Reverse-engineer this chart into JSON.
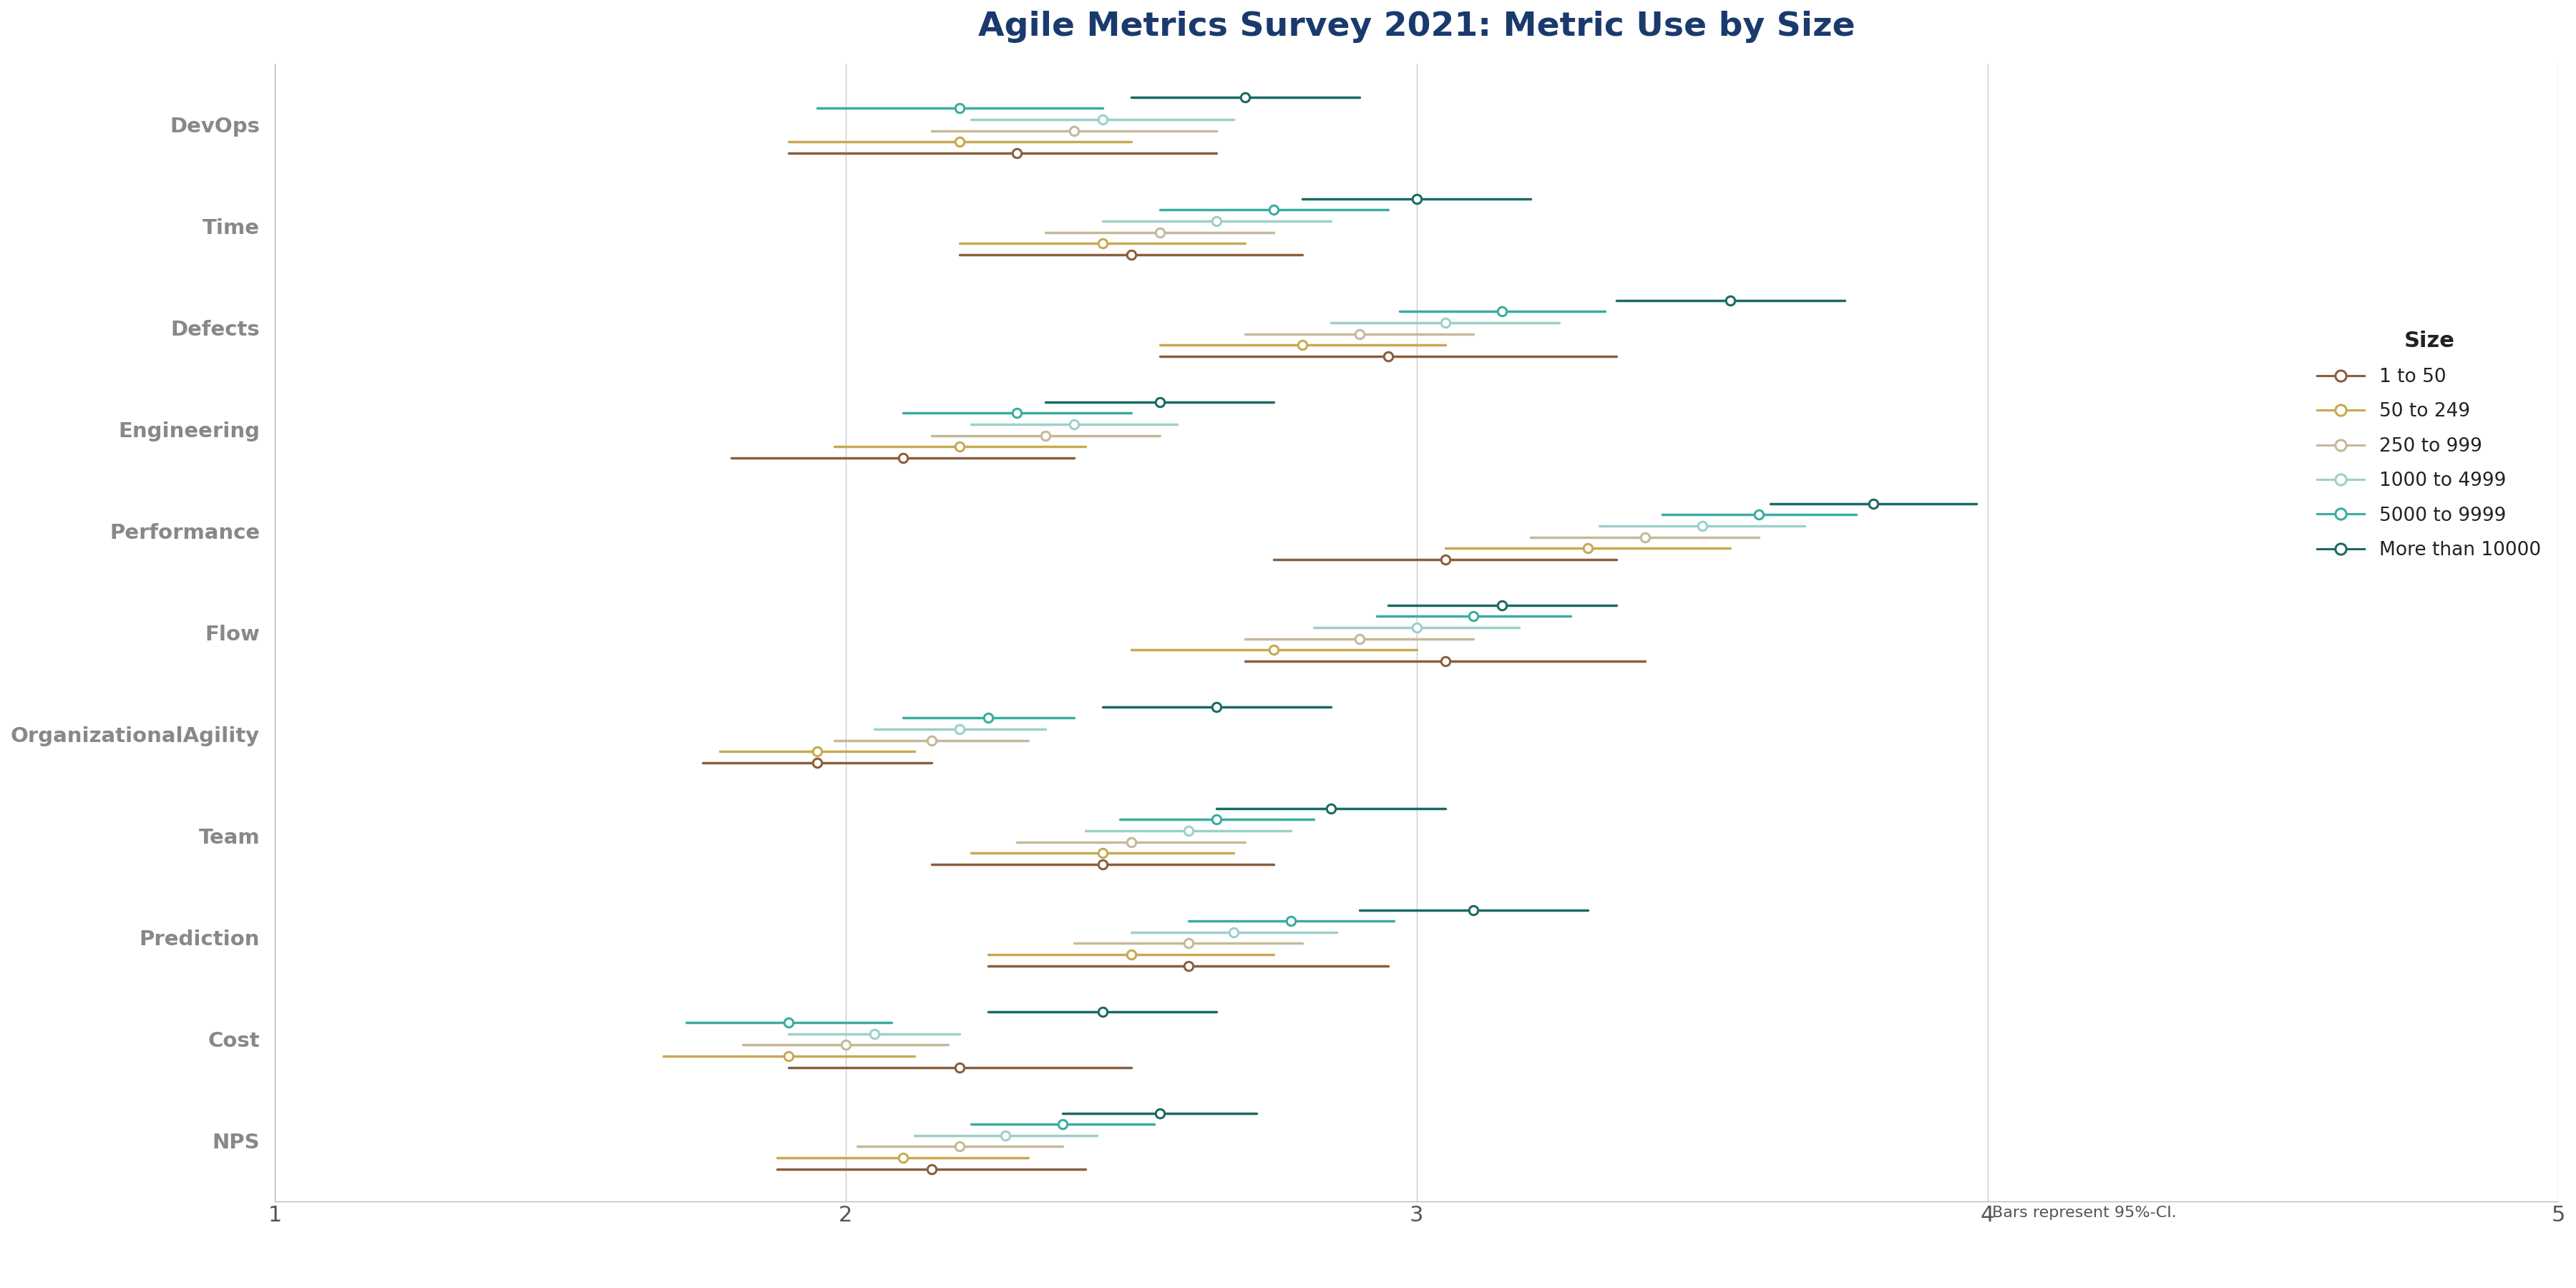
{
  "title": "Agile Metrics Survey 2021: Metric Use by Size",
  "categories": [
    "DevOps",
    "Time",
    "Defects",
    "Engineering",
    "Performance",
    "Flow",
    "OrganizationalAgility",
    "Team",
    "Prediction",
    "Cost",
    "NPS"
  ],
  "size_labels": [
    "1 to 50",
    "50 to 249",
    "250 to 999",
    "1000 to 4999",
    "5000 to 9999",
    "More than 10000"
  ],
  "colors": [
    "#8B5E3C",
    "#C8A951",
    "#C4B99A",
    "#9DCFCA",
    "#3AADA0",
    "#1A6B63"
  ],
  "xlim": [
    1,
    5
  ],
  "xticks": [
    1,
    2,
    3,
    4,
    5
  ],
  "note": "Bars represent 95%-CI.",
  "size_offsets": [
    "-0.28",
    "-0.17",
    "-0.06",
    "0.05",
    "0.16",
    "0.27"
  ],
  "data": {
    "DevOps": {
      "1 to 50": {
        "mean": 2.3,
        "lo": 1.9,
        "hi": 2.65
      },
      "50 to 249": {
        "mean": 2.2,
        "lo": 1.9,
        "hi": 2.5
      },
      "250 to 999": {
        "mean": 2.4,
        "lo": 2.15,
        "hi": 2.65
      },
      "1000 to 4999": {
        "mean": 2.45,
        "lo": 2.22,
        "hi": 2.68
      },
      "5000 to 9999": {
        "mean": 2.2,
        "lo": 1.95,
        "hi": 2.45
      },
      "More than 10000": {
        "mean": 2.7,
        "lo": 2.5,
        "hi": 2.9
      }
    },
    "Time": {
      "1 to 50": {
        "mean": 2.5,
        "lo": 2.2,
        "hi": 2.8
      },
      "50 to 249": {
        "mean": 2.45,
        "lo": 2.2,
        "hi": 2.7
      },
      "250 to 999": {
        "mean": 2.55,
        "lo": 2.35,
        "hi": 2.75
      },
      "1000 to 4999": {
        "mean": 2.65,
        "lo": 2.45,
        "hi": 2.85
      },
      "5000 to 9999": {
        "mean": 2.75,
        "lo": 2.55,
        "hi": 2.95
      },
      "More than 10000": {
        "mean": 3.0,
        "lo": 2.8,
        "hi": 3.2
      }
    },
    "Defects": {
      "1 to 50": {
        "mean": 2.95,
        "lo": 2.55,
        "hi": 3.35
      },
      "50 to 249": {
        "mean": 2.8,
        "lo": 2.55,
        "hi": 3.05
      },
      "250 to 999": {
        "mean": 2.9,
        "lo": 2.7,
        "hi": 3.1
      },
      "1000 to 4999": {
        "mean": 3.05,
        "lo": 2.85,
        "hi": 3.25
      },
      "5000 to 9999": {
        "mean": 3.15,
        "lo": 2.97,
        "hi": 3.33
      },
      "More than 10000": {
        "mean": 3.55,
        "lo": 3.35,
        "hi": 3.75
      }
    },
    "Engineering": {
      "1 to 50": {
        "mean": 2.1,
        "lo": 1.8,
        "hi": 2.4
      },
      "50 to 249": {
        "mean": 2.2,
        "lo": 1.98,
        "hi": 2.42
      },
      "250 to 999": {
        "mean": 2.35,
        "lo": 2.15,
        "hi": 2.55
      },
      "1000 to 4999": {
        "mean": 2.4,
        "lo": 2.22,
        "hi": 2.58
      },
      "5000 to 9999": {
        "mean": 2.3,
        "lo": 2.1,
        "hi": 2.5
      },
      "More than 10000": {
        "mean": 2.55,
        "lo": 2.35,
        "hi": 2.75
      }
    },
    "Performance": {
      "1 to 50": {
        "mean": 3.05,
        "lo": 2.75,
        "hi": 3.35
      },
      "50 to 249": {
        "mean": 3.3,
        "lo": 3.05,
        "hi": 3.55
      },
      "250 to 999": {
        "mean": 3.4,
        "lo": 3.2,
        "hi": 3.6
      },
      "1000 to 4999": {
        "mean": 3.5,
        "lo": 3.32,
        "hi": 3.68
      },
      "5000 to 9999": {
        "mean": 3.6,
        "lo": 3.43,
        "hi": 3.77
      },
      "More than 10000": {
        "mean": 3.8,
        "lo": 3.62,
        "hi": 3.98
      }
    },
    "Flow": {
      "1 to 50": {
        "mean": 3.05,
        "lo": 2.7,
        "hi": 3.4
      },
      "50 to 249": {
        "mean": 2.75,
        "lo": 2.5,
        "hi": 3.0
      },
      "250 to 999": {
        "mean": 2.9,
        "lo": 2.7,
        "hi": 3.1
      },
      "1000 to 4999": {
        "mean": 3.0,
        "lo": 2.82,
        "hi": 3.18
      },
      "5000 to 9999": {
        "mean": 3.1,
        "lo": 2.93,
        "hi": 3.27
      },
      "More than 10000": {
        "mean": 3.15,
        "lo": 2.95,
        "hi": 3.35
      }
    },
    "OrganizationalAgility": {
      "1 to 50": {
        "mean": 1.95,
        "lo": 1.75,
        "hi": 2.15
      },
      "50 to 249": {
        "mean": 1.95,
        "lo": 1.78,
        "hi": 2.12
      },
      "250 to 999": {
        "mean": 2.15,
        "lo": 1.98,
        "hi": 2.32
      },
      "1000 to 4999": {
        "mean": 2.2,
        "lo": 2.05,
        "hi": 2.35
      },
      "5000 to 9999": {
        "mean": 2.25,
        "lo": 2.1,
        "hi": 2.4
      },
      "More than 10000": {
        "mean": 2.65,
        "lo": 2.45,
        "hi": 2.85
      }
    },
    "Team": {
      "1 to 50": {
        "mean": 2.45,
        "lo": 2.15,
        "hi": 2.75
      },
      "50 to 249": {
        "mean": 2.45,
        "lo": 2.22,
        "hi": 2.68
      },
      "250 to 999": {
        "mean": 2.5,
        "lo": 2.3,
        "hi": 2.7
      },
      "1000 to 4999": {
        "mean": 2.6,
        "lo": 2.42,
        "hi": 2.78
      },
      "5000 to 9999": {
        "mean": 2.65,
        "lo": 2.48,
        "hi": 2.82
      },
      "More than 10000": {
        "mean": 2.85,
        "lo": 2.65,
        "hi": 3.05
      }
    },
    "Prediction": {
      "1 to 50": {
        "mean": 2.6,
        "lo": 2.25,
        "hi": 2.95
      },
      "50 to 249": {
        "mean": 2.5,
        "lo": 2.25,
        "hi": 2.75
      },
      "250 to 999": {
        "mean": 2.6,
        "lo": 2.4,
        "hi": 2.8
      },
      "1000 to 4999": {
        "mean": 2.68,
        "lo": 2.5,
        "hi": 2.86
      },
      "5000 to 9999": {
        "mean": 2.78,
        "lo": 2.6,
        "hi": 2.96
      },
      "More than 10000": {
        "mean": 3.1,
        "lo": 2.9,
        "hi": 3.3
      }
    },
    "Cost": {
      "1 to 50": {
        "mean": 2.2,
        "lo": 1.9,
        "hi": 2.5
      },
      "50 to 249": {
        "mean": 1.9,
        "lo": 1.68,
        "hi": 2.12
      },
      "250 to 999": {
        "mean": 2.0,
        "lo": 1.82,
        "hi": 2.18
      },
      "1000 to 4999": {
        "mean": 2.05,
        "lo": 1.9,
        "hi": 2.2
      },
      "5000 to 9999": {
        "mean": 1.9,
        "lo": 1.72,
        "hi": 2.08
      },
      "More than 10000": {
        "mean": 2.45,
        "lo": 2.25,
        "hi": 2.65
      }
    },
    "NPS": {
      "1 to 50": {
        "mean": 2.15,
        "lo": 1.88,
        "hi": 2.42
      },
      "50 to 249": {
        "mean": 2.1,
        "lo": 1.88,
        "hi": 2.32
      },
      "250 to 999": {
        "mean": 2.2,
        "lo": 2.02,
        "hi": 2.38
      },
      "1000 to 4999": {
        "mean": 2.28,
        "lo": 2.12,
        "hi": 2.44
      },
      "5000 to 9999": {
        "mean": 2.38,
        "lo": 2.22,
        "hi": 2.54
      },
      "More than 10000": {
        "mean": 2.55,
        "lo": 2.38,
        "hi": 2.72
      }
    }
  }
}
